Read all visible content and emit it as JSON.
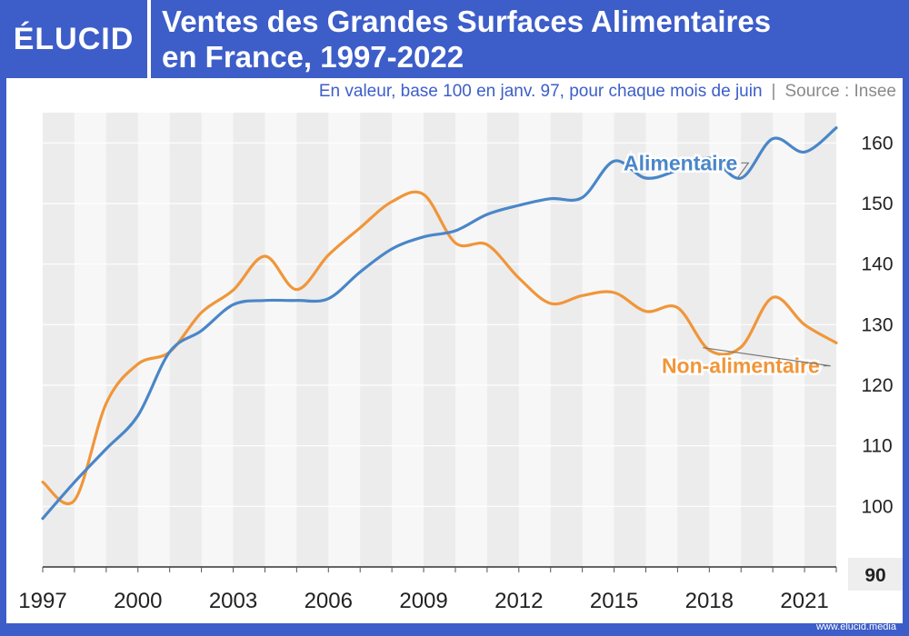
{
  "header": {
    "logo": "ÉLUCID",
    "title_line1": "Ventes des Grandes Surfaces Alimentaires",
    "title_line2": "en France, 1997-2022",
    "subtitle": "En valeur, base 100 en janv. 97, pour chaque mois de juin",
    "separator": "|",
    "source": "Source : Insee"
  },
  "footer": {
    "site": "www.elucid.media"
  },
  "colors": {
    "brand": "#3d5ec9",
    "alimentaire": "#4a86c8",
    "non_alimentaire": "#f0963a"
  },
  "chart_data": {
    "type": "line",
    "xlim": [
      1997,
      2022
    ],
    "ylim": [
      90,
      165
    ],
    "x_ticks": [
      1997,
      2000,
      2003,
      2006,
      2009,
      2012,
      2015,
      2018,
      2021
    ],
    "y_ticks": [
      90,
      100,
      110,
      120,
      130,
      140,
      150,
      160
    ],
    "grid": "vertical yearly bands, horizontal gridlines",
    "x": [
      1997,
      1998,
      1999,
      2000,
      2001,
      2002,
      2003,
      2004,
      2005,
      2006,
      2007,
      2008,
      2009,
      2010,
      2011,
      2012,
      2013,
      2014,
      2015,
      2016,
      2017,
      2018,
      2019,
      2020,
      2021,
      2022
    ],
    "series": [
      {
        "name": "Alimentaire",
        "values": [
          98,
          104,
          109.5,
          115,
          125.5,
          129,
          133.3,
          134,
          134,
          134.3,
          138.7,
          142.5,
          144.5,
          145.5,
          148.2,
          149.7,
          150.8,
          151,
          157,
          154.2,
          155.5,
          157.5,
          154.2,
          160.7,
          158.5,
          162.5
        ]
      },
      {
        "name": "Non-alimentaire",
        "values": [
          104,
          101,
          117,
          123.5,
          125.5,
          132,
          135.7,
          141.3,
          135.8,
          141.5,
          146,
          150.3,
          151.5,
          143.5,
          143.2,
          137.7,
          133.5,
          134.8,
          135.3,
          132.2,
          132.8,
          125.8,
          126.3,
          134.5,
          130,
          127
        ]
      }
    ],
    "labels": [
      {
        "text": "Alimentaire",
        "series": 0,
        "x": 2015.3,
        "y": 155.5,
        "leader_to": [
          2018.9,
          154.3
        ]
      },
      {
        "text": "Non-alimentaire",
        "series": 1,
        "x": 2016.5,
        "y": 122,
        "leader_to": [
          2017.8,
          126.2
        ]
      }
    ]
  }
}
